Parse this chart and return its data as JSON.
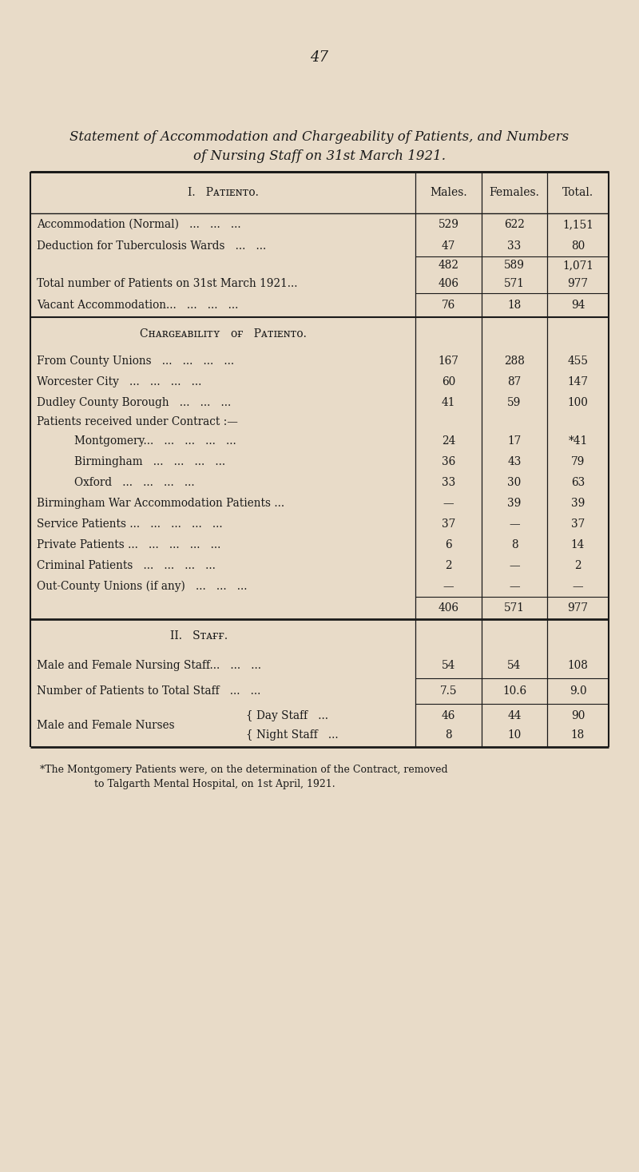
{
  "page_number": "47",
  "bg_color": "#e8dbc8",
  "title_line1": "Statement of Accommodation and Chargeability of Patients, and Numbers",
  "title_line2": "of Nursing Staff on 31st March 1921.",
  "footnote_line1": "*The Montgomery Patients were, on the determination of the Contract, removed",
  "footnote_line2": "to Talgarth Mental Hospital, on 1st April, 1921."
}
